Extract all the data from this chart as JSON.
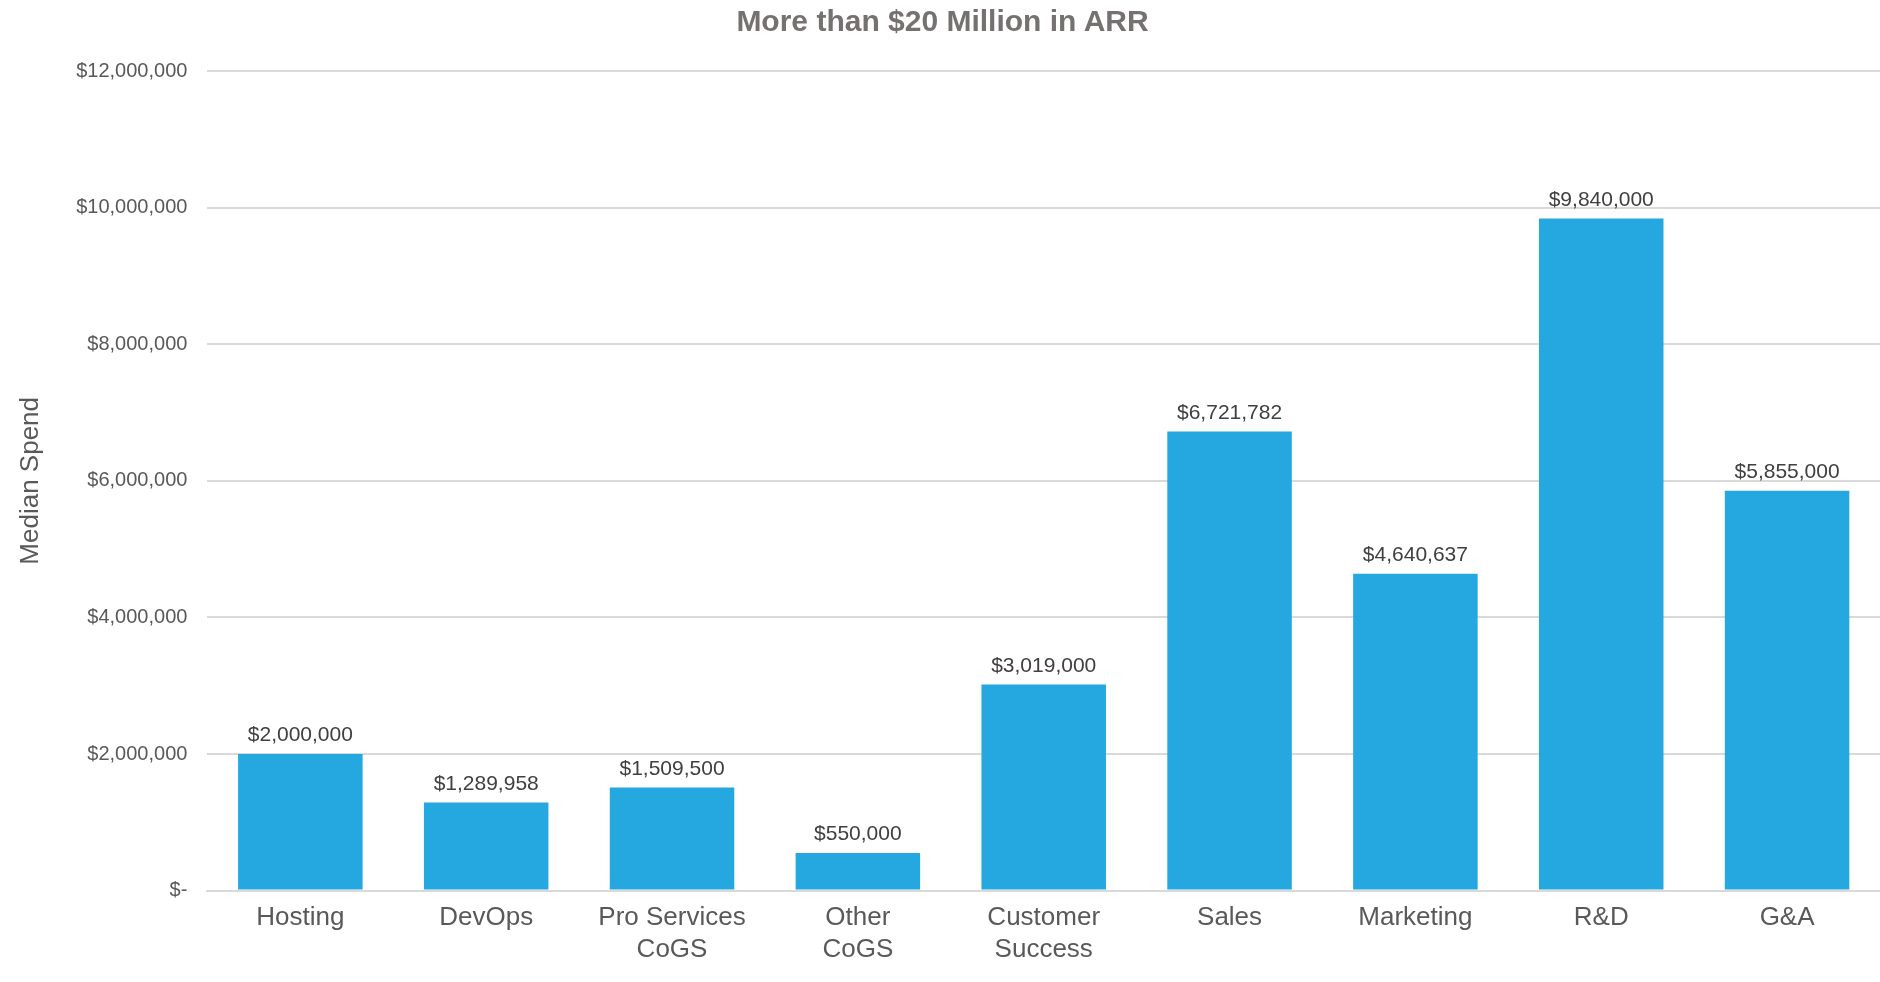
{
  "chart_data": {
    "type": "bar",
    "title": "More than $20 Million in ARR",
    "ylabel": "Median Spend",
    "categories": [
      "Hosting",
      "DevOps",
      "Pro Services CoGS",
      "Other CoGS",
      "Customer Success",
      "Sales",
      "Marketing",
      "R&D",
      "G&A"
    ],
    "values": [
      2000000,
      1289958,
      1509500,
      550000,
      3019000,
      6721782,
      4640637,
      9840000,
      5855000
    ],
    "value_labels": [
      "$2,000,000",
      "$1,289,958",
      "$1,509,500",
      "$550,000",
      "$3,019,000",
      "$6,721,782",
      "$4,640,637",
      "$9,840,000",
      "$5,855,000"
    ],
    "color": "#25a8e0",
    "ylim": [
      0,
      12000000
    ],
    "yticks": [
      {
        "value": 0,
        "label": "$-"
      },
      {
        "value": 2000000,
        "label": "$2,000,000"
      },
      {
        "value": 4000000,
        "label": "$4,000,000"
      },
      {
        "value": 6000000,
        "label": "$6,000,000"
      },
      {
        "value": 8000000,
        "label": "$8,000,000"
      },
      {
        "value": 10000000,
        "label": "$10,000,000"
      },
      {
        "value": 12000000,
        "label": "$12,000,000"
      }
    ],
    "grid": "y",
    "legend": false
  }
}
